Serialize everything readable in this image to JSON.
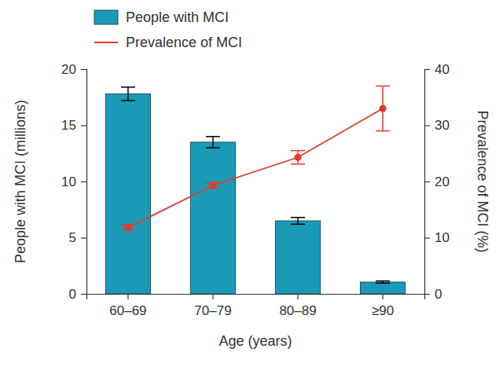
{
  "chart_data": {
    "type": "bar",
    "x_label": "Age (years)",
    "y_label": "People with MCI (millions)",
    "y2_label": "Prevalence of MCI (%)",
    "categories": [
      "60–69",
      "70–79",
      "80–89",
      "≥90"
    ],
    "series": [
      {
        "name": "People with MCI",
        "type": "bar",
        "color": "#1a9bb5",
        "values": [
          17.8,
          13.5,
          6.5,
          1.05
        ],
        "errors": [
          0.6,
          0.5,
          0.3,
          0.1
        ]
      },
      {
        "name": "Prevalence of MCI",
        "type": "line",
        "axis": "y2",
        "color": "#e0392f",
        "marker": "circle",
        "values": [
          11.8,
          19.3,
          24.3,
          33
        ],
        "errors": [
          0.5,
          0.5,
          1.2,
          4
        ]
      }
    ],
    "ylim": [
      0,
      20
    ],
    "yticks": [
      0,
      5,
      10,
      15,
      20
    ],
    "y2lim": [
      0,
      40
    ],
    "y2ticks": [
      0,
      10,
      20,
      30,
      40
    ],
    "legend": "top-left",
    "grid": false
  }
}
